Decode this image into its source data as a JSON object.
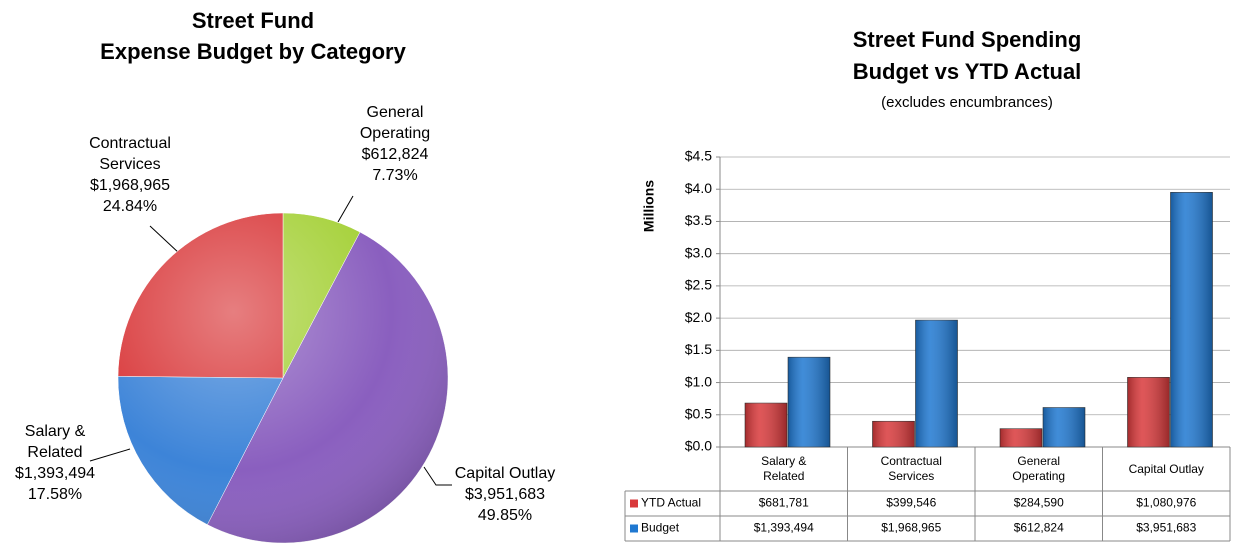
{
  "chart_data": [
    {
      "type": "pie",
      "title": "Street Fund",
      "subtitle": "Expense Budget by Category",
      "categories": [
        "General Operating",
        "Capital Outlay",
        "Salary & Related",
        "Contractual Services"
      ],
      "values": [
        612824,
        3951683,
        1393494,
        1968965
      ],
      "value_labels": [
        "$612,824",
        "$3,951,683",
        "$1,393,494",
        "$1,968,965"
      ],
      "percents": [
        7.73,
        49.85,
        17.58,
        24.84
      ],
      "percent_labels": [
        "7.73%",
        "49.85%",
        "17.58%",
        "24.84%"
      ],
      "colors": [
        "#a6d13a",
        "#8a5fbf",
        "#3d84d8",
        "#d9393b"
      ]
    },
    {
      "type": "bar",
      "title": "Street Fund Spending",
      "subtitle": "Budget vs YTD Actual",
      "annotation": "(excludes encumbrances)",
      "y_label": "Millions",
      "categories": [
        "Salary & Related",
        "Contractual Services",
        "General Operating",
        "Capital Outlay"
      ],
      "series": [
        {
          "name": "YTD Actual",
          "color": "#d9393b",
          "values": [
            0.681781,
            0.399546,
            0.28459,
            1.080976
          ],
          "value_labels": [
            "$681,781",
            "$399,546",
            "$284,590",
            "$1,080,976"
          ]
        },
        {
          "name": "Budget",
          "color": "#1f78d1",
          "values": [
            1.393494,
            1.968965,
            0.612824,
            3.951683
          ],
          "value_labels": [
            "$1,393,494",
            "$1,968,965",
            "$612,824",
            "$3,951,683"
          ]
        }
      ],
      "ylim": [
        0,
        4.5
      ],
      "yticks": [
        {
          "value": 0,
          "label": "$0.0"
        },
        {
          "value": 0.5,
          "label": "$0.5"
        },
        {
          "value": 1,
          "label": "$1.0"
        },
        {
          "value": 1.5,
          "label": "$1.5"
        },
        {
          "value": 2,
          "label": "$2.0"
        },
        {
          "value": 2.5,
          "label": "$2.5"
        },
        {
          "value": 3,
          "label": "$3.0"
        },
        {
          "value": 3.5,
          "label": "$3.5"
        },
        {
          "value": 4,
          "label": "$4.0"
        },
        {
          "value": 4.5,
          "label": "$4.5"
        }
      ],
      "grid": true
    }
  ]
}
